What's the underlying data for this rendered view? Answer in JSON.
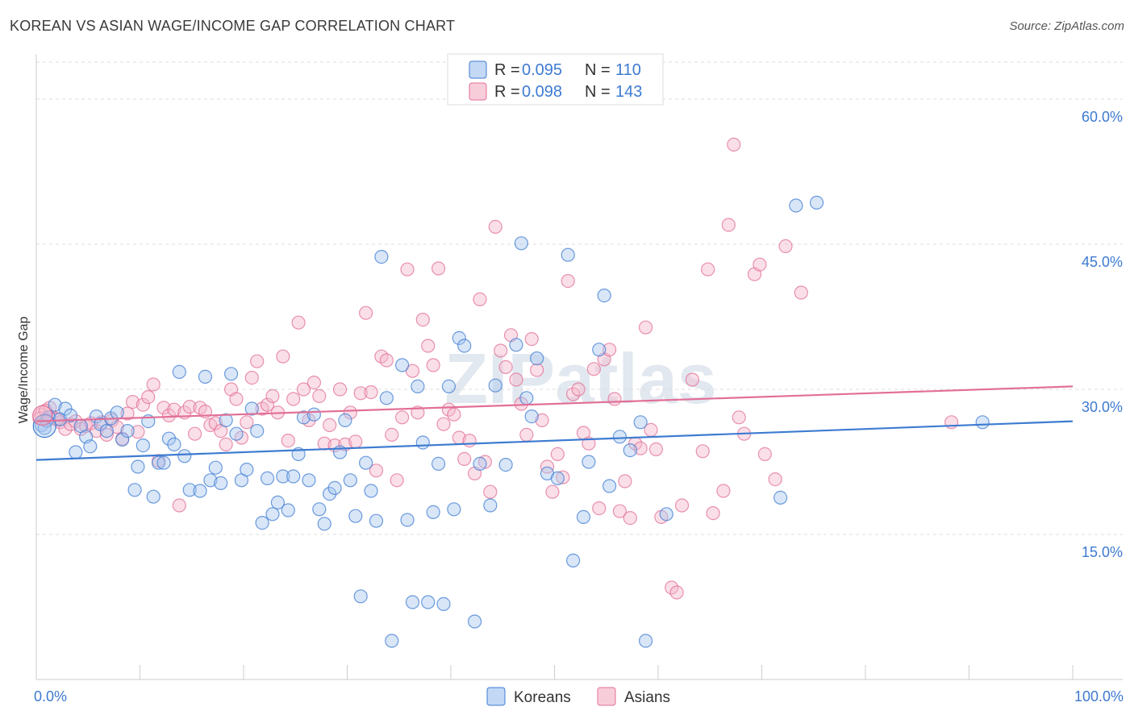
{
  "header": {
    "title": "KOREAN VS ASIAN WAGE/INCOME GAP CORRELATION CHART",
    "source": "Source: ZipAtlas.com"
  },
  "watermark": "ZIPatlas",
  "colors": {
    "koreans": "#3d7bd1",
    "koreans_fill": "#a9c8ef",
    "asians": "#e26f97",
    "asians_fill": "#f5b8cb",
    "tick_label": "#3d7bd1",
    "grid": "#dddddd"
  },
  "legend": {
    "rows": [
      {
        "r_label": "R =",
        "r_value": "0.095",
        "n_label": "N =",
        "n_value": "110"
      },
      {
        "r_label": "R =",
        "r_value": "0.098",
        "n_label": "N =",
        "n_value": "143"
      }
    ],
    "bottom": [
      "Koreans",
      "Asians"
    ]
  },
  "chart_data": {
    "type": "scatter",
    "title": "KOREAN VS ASIAN WAGE/INCOME GAP CORRELATION CHART",
    "xlabel": "",
    "ylabel": "Wage/Income Gap",
    "xlim": [
      0,
      100
    ],
    "ylim": [
      0,
      64
    ],
    "x_tick_labels": [
      "0.0%",
      "100.0%"
    ],
    "y_ticks": [
      15,
      30,
      45,
      60
    ],
    "y_tick_labels": [
      "15.0%",
      "30.0%",
      "45.0%",
      "60.0%"
    ],
    "grid": true,
    "legend_position": "top-center",
    "series": [
      {
        "name": "Koreans",
        "r": 0.095,
        "n": 110,
        "trend": {
          "x": [
            0,
            100
          ],
          "y": [
            22.7,
            26.7
          ]
        },
        "points": [
          [
            0.5,
            26.3
          ],
          [
            1.0,
            26.8
          ],
          [
            1.2,
            27.1
          ],
          [
            1.8,
            28.4
          ],
          [
            2.3,
            26.9
          ],
          [
            2.8,
            28.0
          ],
          [
            3.3,
            27.3
          ],
          [
            3.8,
            23.5
          ],
          [
            4.3,
            26.2
          ],
          [
            4.8,
            25.1
          ],
          [
            5.2,
            24.1
          ],
          [
            5.8,
            27.2
          ],
          [
            6.2,
            26.4
          ],
          [
            6.8,
            25.7
          ],
          [
            7.2,
            27.0
          ],
          [
            7.8,
            27.6
          ],
          [
            8.3,
            24.8
          ],
          [
            8.8,
            25.7
          ],
          [
            9.5,
            19.6
          ],
          [
            9.8,
            22.0
          ],
          [
            10.3,
            24.2
          ],
          [
            10.8,
            26.7
          ],
          [
            11.3,
            18.9
          ],
          [
            11.8,
            22.4
          ],
          [
            12.3,
            22.4
          ],
          [
            12.8,
            24.9
          ],
          [
            13.3,
            24.3
          ],
          [
            13.8,
            31.8
          ],
          [
            14.3,
            23.1
          ],
          [
            14.8,
            19.6
          ],
          [
            15.8,
            19.5
          ],
          [
            16.3,
            31.3
          ],
          [
            16.8,
            20.6
          ],
          [
            17.3,
            21.9
          ],
          [
            17.8,
            20.3
          ],
          [
            18.3,
            26.8
          ],
          [
            18.8,
            31.6
          ],
          [
            19.3,
            25.4
          ],
          [
            19.8,
            20.6
          ],
          [
            20.3,
            21.7
          ],
          [
            20.8,
            28.0
          ],
          [
            21.3,
            25.7
          ],
          [
            21.8,
            16.2
          ],
          [
            22.3,
            20.8
          ],
          [
            22.8,
            17.1
          ],
          [
            23.3,
            18.3
          ],
          [
            23.8,
            21.0
          ],
          [
            24.3,
            17.5
          ],
          [
            24.8,
            21.0
          ],
          [
            25.3,
            23.3
          ],
          [
            25.8,
            27.1
          ],
          [
            26.3,
            20.6
          ],
          [
            26.8,
            27.4
          ],
          [
            27.3,
            17.6
          ],
          [
            27.8,
            16.1
          ],
          [
            28.3,
            19.2
          ],
          [
            28.8,
            19.8
          ],
          [
            29.3,
            23.5
          ],
          [
            29.8,
            26.8
          ],
          [
            30.3,
            20.6
          ],
          [
            30.8,
            16.9
          ],
          [
            31.3,
            8.6
          ],
          [
            31.8,
            22.4
          ],
          [
            32.3,
            19.5
          ],
          [
            32.8,
            16.4
          ],
          [
            33.3,
            43.7
          ],
          [
            33.8,
            29.1
          ],
          [
            34.3,
            4.0
          ],
          [
            35.3,
            32.5
          ],
          [
            35.8,
            16.5
          ],
          [
            36.3,
            8.0
          ],
          [
            36.8,
            30.3
          ],
          [
            37.3,
            24.5
          ],
          [
            37.8,
            8.0
          ],
          [
            38.3,
            17.3
          ],
          [
            38.8,
            22.3
          ],
          [
            39.3,
            7.8
          ],
          [
            39.8,
            30.3
          ],
          [
            40.3,
            17.6
          ],
          [
            40.8,
            35.3
          ],
          [
            41.3,
            34.5
          ],
          [
            42.3,
            6.0
          ],
          [
            42.8,
            22.3
          ],
          [
            43.8,
            18.0
          ],
          [
            44.3,
            30.4
          ],
          [
            45.3,
            22.2
          ],
          [
            46.3,
            34.6
          ],
          [
            46.8,
            45.1
          ],
          [
            47.3,
            29.1
          ],
          [
            47.8,
            27.2
          ],
          [
            48.3,
            33.2
          ],
          [
            49.3,
            21.3
          ],
          [
            50.3,
            20.8
          ],
          [
            51.3,
            43.9
          ],
          [
            51.8,
            12.3
          ],
          [
            52.8,
            16.8
          ],
          [
            53.3,
            22.5
          ],
          [
            54.3,
            34.1
          ],
          [
            54.8,
            39.7
          ],
          [
            55.3,
            20.0
          ],
          [
            56.3,
            25.1
          ],
          [
            57.3,
            23.7
          ],
          [
            58.3,
            26.6
          ],
          [
            58.8,
            4.0
          ],
          [
            60.8,
            17.1
          ],
          [
            71.8,
            18.8
          ],
          [
            73.3,
            49.0
          ],
          [
            75.3,
            49.3
          ],
          [
            91.3,
            26.6
          ],
          [
            0.8,
            26.0
          ]
        ]
      },
      {
        "name": "Asians",
        "r": 0.098,
        "n": 143,
        "trend": {
          "x": [
            0,
            100
          ],
          "y": [
            26.7,
            30.3
          ]
        },
        "points": [
          [
            0.5,
            27.4
          ],
          [
            1.0,
            26.7
          ],
          [
            1.3,
            28.1
          ],
          [
            1.8,
            27.0
          ],
          [
            2.3,
            26.6
          ],
          [
            2.8,
            25.9
          ],
          [
            3.3,
            26.4
          ],
          [
            3.8,
            26.7
          ],
          [
            4.3,
            25.9
          ],
          [
            4.8,
            26.2
          ],
          [
            5.3,
            26.5
          ],
          [
            5.8,
            25.7
          ],
          [
            6.3,
            26.6
          ],
          [
            6.8,
            25.3
          ],
          [
            7.3,
            26.8
          ],
          [
            7.8,
            26.1
          ],
          [
            8.3,
            24.9
          ],
          [
            8.8,
            27.5
          ],
          [
            9.3,
            28.7
          ],
          [
            9.8,
            25.6
          ],
          [
            10.3,
            28.4
          ],
          [
            10.8,
            29.2
          ],
          [
            11.3,
            30.5
          ],
          [
            11.8,
            22.6
          ],
          [
            12.3,
            28.1
          ],
          [
            12.8,
            27.3
          ],
          [
            13.3,
            27.9
          ],
          [
            13.8,
            18.0
          ],
          [
            14.3,
            27.6
          ],
          [
            14.8,
            28.2
          ],
          [
            15.3,
            25.4
          ],
          [
            15.8,
            28.1
          ],
          [
            16.3,
            27.7
          ],
          [
            16.8,
            26.3
          ],
          [
            17.3,
            26.5
          ],
          [
            17.8,
            25.7
          ],
          [
            18.3,
            24.3
          ],
          [
            18.8,
            30.0
          ],
          [
            19.3,
            29.0
          ],
          [
            19.8,
            25.0
          ],
          [
            20.3,
            26.6
          ],
          [
            20.8,
            31.2
          ],
          [
            21.3,
            32.9
          ],
          [
            21.8,
            28.0
          ],
          [
            22.3,
            28.4
          ],
          [
            22.8,
            29.3
          ],
          [
            23.3,
            27.6
          ],
          [
            23.8,
            33.4
          ],
          [
            24.3,
            24.7
          ],
          [
            24.8,
            29.0
          ],
          [
            25.3,
            36.9
          ],
          [
            25.8,
            30.0
          ],
          [
            26.3,
            26.8
          ],
          [
            26.8,
            30.7
          ],
          [
            27.3,
            29.3
          ],
          [
            27.8,
            24.4
          ],
          [
            28.3,
            26.3
          ],
          [
            28.8,
            24.2
          ],
          [
            29.3,
            30.0
          ],
          [
            29.8,
            24.3
          ],
          [
            30.3,
            27.6
          ],
          [
            30.8,
            24.6
          ],
          [
            31.3,
            29.6
          ],
          [
            31.8,
            37.9
          ],
          [
            32.3,
            29.7
          ],
          [
            32.8,
            21.6
          ],
          [
            33.3,
            33.4
          ],
          [
            33.8,
            33.0
          ],
          [
            34.3,
            25.3
          ],
          [
            34.8,
            20.6
          ],
          [
            35.3,
            27.1
          ],
          [
            35.8,
            42.4
          ],
          [
            36.3,
            31.9
          ],
          [
            36.8,
            27.6
          ],
          [
            37.3,
            37.2
          ],
          [
            37.8,
            34.5
          ],
          [
            38.3,
            32.5
          ],
          [
            38.8,
            42.5
          ],
          [
            39.3,
            26.4
          ],
          [
            39.8,
            27.9
          ],
          [
            40.3,
            27.4
          ],
          [
            40.8,
            25.0
          ],
          [
            41.3,
            22.8
          ],
          [
            41.8,
            24.7
          ],
          [
            42.3,
            21.3
          ],
          [
            42.8,
            39.3
          ],
          [
            43.3,
            22.5
          ],
          [
            43.8,
            19.4
          ],
          [
            44.3,
            46.8
          ],
          [
            44.8,
            34.0
          ],
          [
            45.3,
            32.3
          ],
          [
            45.8,
            35.6
          ],
          [
            46.3,
            31.0
          ],
          [
            46.8,
            28.5
          ],
          [
            47.3,
            25.3
          ],
          [
            47.8,
            35.2
          ],
          [
            48.3,
            32.0
          ],
          [
            48.8,
            26.8
          ],
          [
            49.3,
            22.0
          ],
          [
            49.8,
            19.4
          ],
          [
            50.3,
            23.3
          ],
          [
            50.8,
            20.9
          ],
          [
            51.3,
            41.2
          ],
          [
            51.8,
            29.5
          ],
          [
            52.3,
            30.0
          ],
          [
            52.8,
            25.5
          ],
          [
            53.3,
            24.4
          ],
          [
            53.8,
            32.1
          ],
          [
            54.3,
            17.7
          ],
          [
            54.8,
            33.1
          ],
          [
            55.3,
            34.1
          ],
          [
            55.8,
            29.0
          ],
          [
            56.3,
            17.4
          ],
          [
            56.8,
            20.5
          ],
          [
            57.3,
            16.7
          ],
          [
            57.8,
            24.4
          ],
          [
            58.3,
            23.9
          ],
          [
            58.8,
            36.4
          ],
          [
            59.3,
            25.8
          ],
          [
            59.8,
            23.8
          ],
          [
            60.3,
            16.8
          ],
          [
            61.3,
            9.5
          ],
          [
            61.8,
            9.0
          ],
          [
            62.3,
            18.0
          ],
          [
            63.3,
            31.0
          ],
          [
            64.3,
            23.6
          ],
          [
            64.8,
            42.4
          ],
          [
            65.3,
            17.2
          ],
          [
            66.3,
            19.5
          ],
          [
            66.8,
            47.0
          ],
          [
            67.3,
            55.3
          ],
          [
            67.8,
            27.1
          ],
          [
            68.3,
            25.4
          ],
          [
            69.3,
            41.9
          ],
          [
            69.8,
            42.9
          ],
          [
            70.3,
            23.3
          ],
          [
            71.3,
            20.7
          ],
          [
            72.3,
            44.8
          ],
          [
            73.8,
            40.0
          ],
          [
            88.3,
            26.6
          ],
          [
            0.3,
            27.0
          ],
          [
            0.9,
            27.8
          ],
          [
            2.0,
            26.9
          ]
        ]
      }
    ]
  }
}
